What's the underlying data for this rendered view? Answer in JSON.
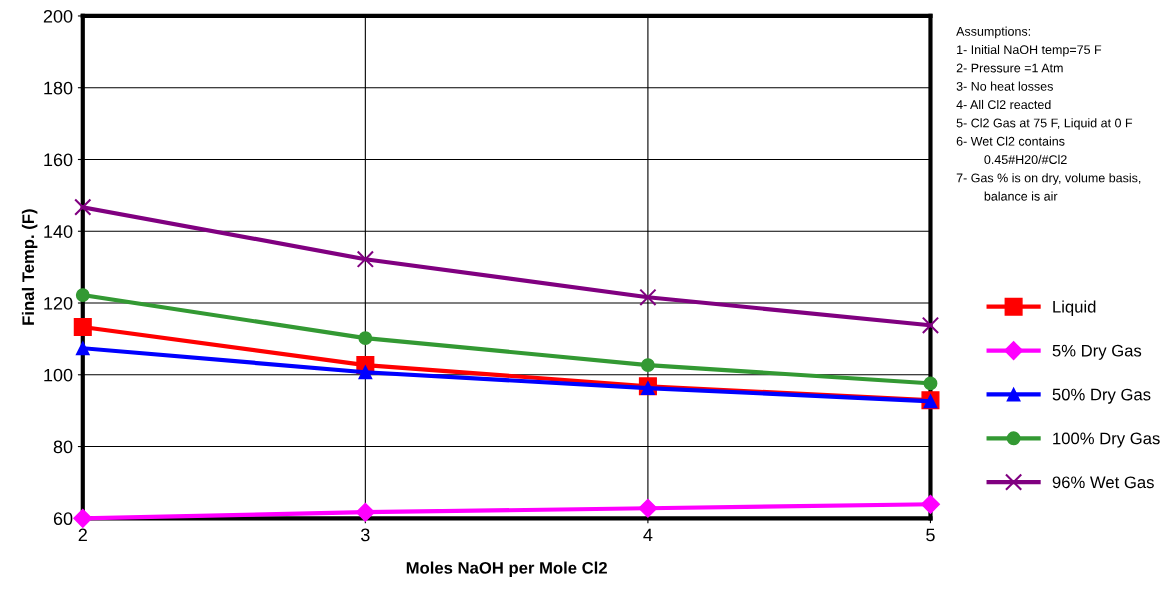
{
  "chart_data": {
    "type": "line",
    "xlabel": "Moles NaOH per Mole Cl2",
    "ylabel": "Final Temp. (F)",
    "x": [
      2,
      3,
      4,
      5
    ],
    "series": [
      {
        "name": "Liquid",
        "color": "#ff0000",
        "marker": "square",
        "values": [
          113.3,
          102.7,
          96.8,
          92.9
        ]
      },
      {
        "name": "5% Dry Gas",
        "color": "#ff00ff",
        "marker": "diamond",
        "values": [
          60,
          61.7,
          62.8,
          63.9
        ]
      },
      {
        "name": "50% Dry Gas",
        "color": "#0000ff",
        "marker": "triangle",
        "values": [
          107.4,
          100.7,
          96.3,
          92.6
        ]
      },
      {
        "name": "100% Dry Gas",
        "color": "#339933",
        "marker": "circle",
        "values": [
          122.2,
          110.2,
          102.7,
          97.6
        ]
      },
      {
        "name": "96% Wet Gas",
        "color": "#800080",
        "marker": "cross",
        "values": [
          146.7,
          132.2,
          121.6,
          113.8
        ]
      }
    ],
    "xlim": [
      2,
      5
    ],
    "xticks": [
      2,
      3,
      4,
      5
    ],
    "ylim": [
      60,
      200
    ],
    "yticks": [
      60,
      80,
      100,
      120,
      140,
      160,
      180,
      200
    ],
    "grid": true,
    "legend": "right",
    "line_style": "solid",
    "annotations": [
      "Assumptions:",
      "1- Initial NaOH temp=75 F",
      "2- Pressure =1 Atm",
      "3- No heat losses",
      "4- All Cl2 reacted",
      "5- Cl2 Gas at 75 F, Liquid at 0 F",
      "6- Wet Cl2 contains",
      "        0.45#H20/#Cl2",
      "7- Gas % is on dry, volume basis,",
      "        balance is air"
    ]
  }
}
